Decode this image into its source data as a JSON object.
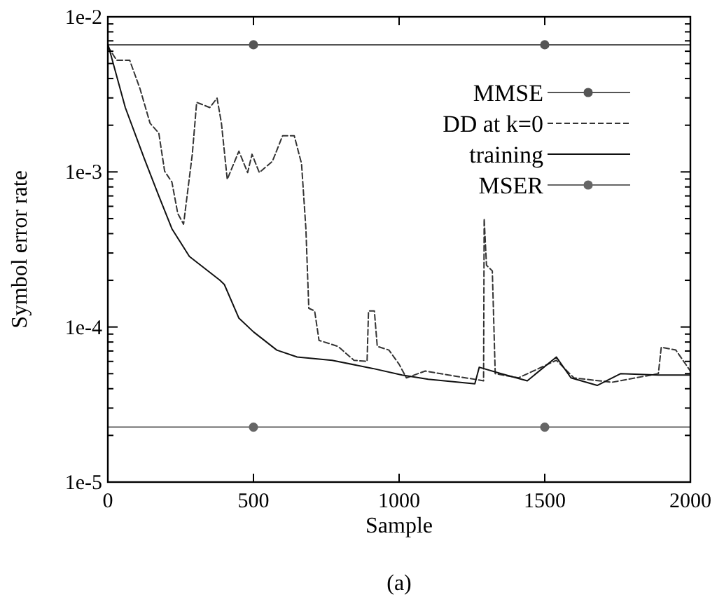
{
  "chart_data": {
    "type": "line",
    "xlabel": "Sample",
    "ylabel": "Symbol error rate",
    "log": "y",
    "grid": false,
    "legend": "top right",
    "xlim": [
      0,
      2000
    ],
    "xticks": [
      0,
      500,
      1000,
      1500,
      2000
    ],
    "ylim": [
      1e-05,
      0.01
    ],
    "yticks": [
      {
        "value": 1e-05,
        "label": "1e-5"
      },
      {
        "value": 2e-05,
        "label": null
      },
      {
        "value": 3e-05,
        "label": null
      },
      {
        "value": 4e-05,
        "label": null
      },
      {
        "value": 5e-05,
        "label": null
      },
      {
        "value": 6e-05,
        "label": null
      },
      {
        "value": 7e-05,
        "label": null
      },
      {
        "value": 8e-05,
        "label": null
      },
      {
        "value": 9e-05,
        "label": null
      },
      {
        "value": 0.0001,
        "label": "1e-4"
      },
      {
        "value": 0.0002,
        "label": null
      },
      {
        "value": 0.0003,
        "label": null
      },
      {
        "value": 0.0004,
        "label": null
      },
      {
        "value": 0.0005,
        "label": null
      },
      {
        "value": 0.0006,
        "label": null
      },
      {
        "value": 0.0007,
        "label": null
      },
      {
        "value": 0.0008,
        "label": null
      },
      {
        "value": 0.0009,
        "label": null
      },
      {
        "value": 0.001,
        "label": "1e-3"
      },
      {
        "value": 0.002,
        "label": null
      },
      {
        "value": 0.003,
        "label": null
      },
      {
        "value": 0.004,
        "label": null
      },
      {
        "value": 0.005,
        "label": null
      },
      {
        "value": 0.006,
        "label": null
      },
      {
        "value": 0.007,
        "label": null
      },
      {
        "value": 0.008,
        "label": null
      },
      {
        "value": 0.009,
        "label": null
      },
      {
        "value": 0.01,
        "label": "1e-2"
      }
    ],
    "annotations": [
      "(a)"
    ],
    "series": [
      {
        "name": "MMSE",
        "color": "#555555",
        "line_style": "solid",
        "marker": "circle",
        "x": [
          0,
          500,
          1500,
          2000
        ],
        "values": [
          0.0066,
          0.0066,
          0.0066,
          0.0066
        ]
      },
      {
        "name": "DD at k=0",
        "color": "#333333",
        "line_style": "dashed",
        "marker": "none",
        "x": [
          0,
          30,
          75,
          110,
          145,
          175,
          195,
          220,
          240,
          260,
          290,
          305,
          350,
          375,
          390,
          410,
          450,
          480,
          495,
          520,
          565,
          600,
          640,
          665,
          680,
          690,
          710,
          725,
          790,
          845,
          890,
          895,
          915,
          925,
          965,
          1000,
          1025,
          1090,
          1170,
          1290,
          1292,
          1300,
          1320,
          1330,
          1410,
          1540,
          1600,
          1730,
          1890,
          1900,
          1950,
          2000
        ],
        "values": [
          0.00645,
          0.00525,
          0.00525,
          0.00346,
          0.00206,
          0.00178,
          0.00101,
          0.00086,
          0.00054,
          0.00046,
          0.0013,
          0.00281,
          0.0026,
          0.00299,
          0.00206,
          0.000895,
          0.00136,
          0.00099,
          0.0013,
          0.00099,
          0.00117,
          0.00171,
          0.00171,
          0.00113,
          0.00043,
          0.000132,
          0.000127,
          8.2e-05,
          7.5e-05,
          6.1e-05,
          6e-05,
          0.000127,
          0.000127,
          7.5e-05,
          7.1e-05,
          5.75e-05,
          4.7e-05,
          5.2e-05,
          4.9e-05,
          4.5e-05,
          0.0005,
          0.00025,
          0.00023,
          5e-05,
          4.7e-05,
          6.1e-05,
          4.7e-05,
          4.4e-05,
          5e-05,
          7.4e-05,
          7.1e-05,
          5.2e-05
        ]
      },
      {
        "name": "training",
        "color": "#111111",
        "line_style": "solid",
        "marker": "none",
        "x": [
          0,
          60,
          125,
          175,
          220,
          280,
          385,
          400,
          450,
          500,
          580,
          650,
          770,
          910,
          1010,
          1100,
          1260,
          1275,
          1350,
          1440,
          1540,
          1590,
          1680,
          1760,
          1890,
          2000
        ],
        "values": [
          0.0067,
          0.0026,
          0.00122,
          0.0007,
          0.00043,
          0.000285,
          0.0002,
          0.000188,
          0.000114,
          9.3e-05,
          7.1e-05,
          6.4e-05,
          6.1e-05,
          5.4e-05,
          4.9e-05,
          4.6e-05,
          4.3e-05,
          5.5e-05,
          5e-05,
          4.5e-05,
          6.4e-05,
          4.7e-05,
          4.2e-05,
          5e-05,
          4.9e-05,
          4.9e-05
        ]
      },
      {
        "name": "MSER",
        "color": "#666666",
        "line_style": "solid",
        "marker": "circle",
        "x": [
          0,
          500,
          1500,
          2000
        ],
        "values": [
          2.26e-05,
          2.26e-05,
          2.26e-05,
          2.26e-05
        ]
      }
    ]
  }
}
